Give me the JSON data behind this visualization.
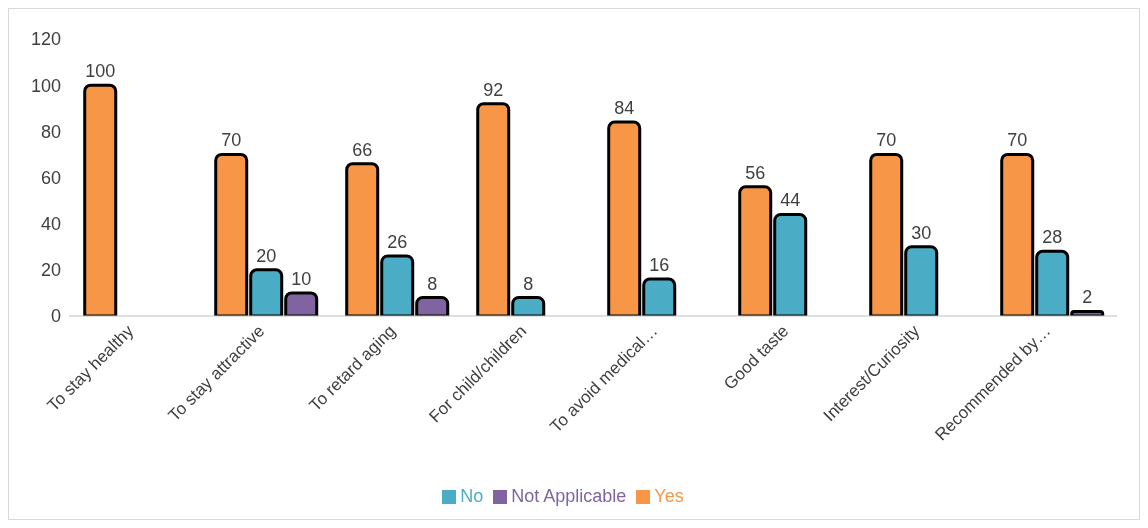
{
  "chart_data": {
    "type": "bar",
    "categories": [
      "To stay healthy",
      "To stay attractive",
      "To retard aging",
      "For child/children",
      "To avoid medical…",
      "Good taste",
      "Interest/Curiosity",
      "Recommended by…"
    ],
    "series": [
      {
        "name": "Yes",
        "color": "#f79646",
        "values": [
          100,
          70,
          66,
          92,
          84,
          56,
          70,
          70
        ]
      },
      {
        "name": "No",
        "color": "#4bacc6",
        "values": [
          null,
          20,
          26,
          8,
          16,
          44,
          30,
          28
        ]
      },
      {
        "name": "Not Applicable",
        "color": "#8064a2",
        "values": [
          null,
          10,
          8,
          null,
          null,
          null,
          null,
          2
        ]
      }
    ],
    "ylim": [
      0,
      120
    ],
    "yticks": [
      0,
      20,
      40,
      60,
      80,
      100,
      120
    ],
    "grid": false,
    "legend": "bottom",
    "data_labels": true
  }
}
